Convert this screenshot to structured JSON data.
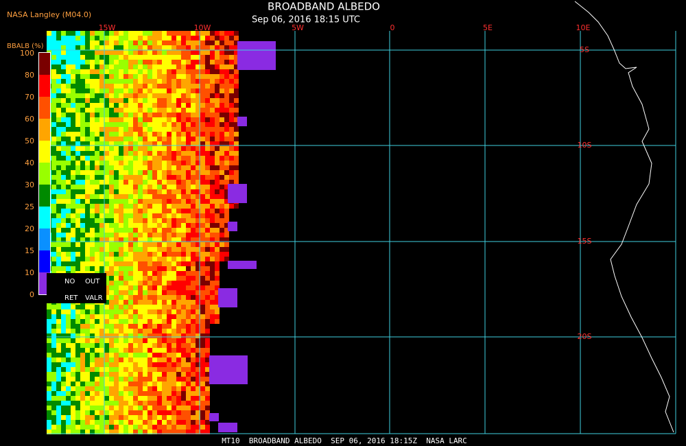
{
  "header": {
    "source": "NASA Langley (M04.0)",
    "title": "BROADBAND ALBEDO",
    "datetime": "Sep 06, 2016 18:15 UTC"
  },
  "map": {
    "lon_labels": [
      "15W",
      "10W",
      "5W",
      "0",
      "5E",
      "10E"
    ],
    "lat_labels": [
      "5S",
      "10S",
      "15S",
      "20S"
    ],
    "grid_color": "#40d0e0",
    "label_color": "#ff3030",
    "coast_color": "#ffffff"
  },
  "colorbar": {
    "title": "BBALB (%)",
    "ticks": [
      100,
      80,
      70,
      60,
      50,
      40,
      30,
      25,
      20,
      15,
      10,
      0
    ],
    "colors": [
      "#7a0000",
      "#ff0000",
      "#ff5000",
      "#ffa500",
      "#ffff00",
      "#99ff00",
      "#008a00",
      "#00ffff",
      "#0a90ff",
      "#0000ff",
      "#8a2be2"
    ],
    "no_data": [
      "NO",
      "OUT",
      "RET",
      "VALR"
    ]
  },
  "footer": "MT10  BROADBAND ALBEDO  SEP 06, 2016 18:15Z  NASA LARC"
}
